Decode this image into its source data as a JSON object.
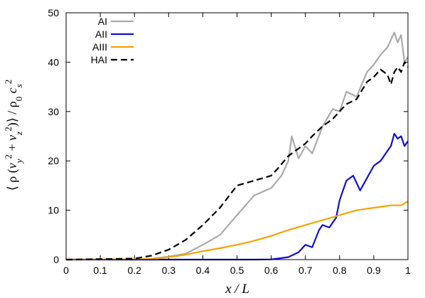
{
  "chart_data": {
    "type": "line",
    "xlabel": "x / L",
    "ylabel": {
      "open": "⟨ ρ (",
      "v1": "v",
      "s1": "y",
      "p1": "2",
      "plus": " + ",
      "v2": "v",
      "s2": "z",
      "p2": "2",
      "close": ")⟩ / ρ",
      "s0": "0",
      "c": " c",
      "s3": "s",
      "p3": "2"
    },
    "xlim": [
      0,
      1
    ],
    "ylim": [
      0,
      50
    ],
    "xticks": [
      0,
      0.1,
      0.2,
      0.3,
      0.4,
      0.5,
      0.6,
      0.7,
      0.8,
      0.9,
      1
    ],
    "xtick_labels": [
      "0",
      "0.1",
      "0.2",
      "0.3",
      "0.4",
      "0.5",
      "0.6",
      "0.7",
      "0.8",
      "0.9",
      "1"
    ],
    "yticks": [
      0,
      10,
      20,
      30,
      40,
      50
    ],
    "ytick_labels": [
      "0",
      "10",
      "20",
      "30",
      "40",
      "50"
    ],
    "grid": false,
    "legend": "top-left",
    "series": [
      {
        "name": "AI",
        "color": "#aaaaaa",
        "dash": "solid",
        "x": [
          0,
          0.2,
          0.25,
          0.3,
          0.35,
          0.4,
          0.45,
          0.5,
          0.55,
          0.6,
          0.63,
          0.65,
          0.66,
          0.68,
          0.7,
          0.72,
          0.75,
          0.78,
          0.8,
          0.82,
          0.85,
          0.88,
          0.9,
          0.92,
          0.94,
          0.96,
          0.97,
          0.98,
          0.99,
          1.0
        ],
        "y": [
          0,
          0,
          0.2,
          0.6,
          1.2,
          3,
          5,
          9,
          13,
          14.5,
          17,
          20,
          25,
          20.5,
          23,
          21.5,
          27,
          30.5,
          30,
          34,
          33,
          38,
          39.5,
          41.5,
          43,
          46,
          44,
          45.5,
          40,
          41
        ]
      },
      {
        "name": "AII",
        "color": "#1010cc",
        "dash": "solid",
        "x": [
          0,
          0.55,
          0.6,
          0.63,
          0.65,
          0.68,
          0.7,
          0.72,
          0.74,
          0.75,
          0.77,
          0.79,
          0.8,
          0.82,
          0.84,
          0.86,
          0.88,
          0.9,
          0.92,
          0.94,
          0.95,
          0.96,
          0.97,
          0.98,
          0.99,
          1.0
        ],
        "y": [
          0,
          0,
          0.05,
          0.3,
          0.5,
          1.5,
          3,
          2.5,
          6,
          7,
          6.5,
          8.5,
          12,
          16,
          17,
          14,
          16.5,
          19,
          20,
          22,
          23,
          25.5,
          24.5,
          25,
          23,
          24
        ]
      },
      {
        "name": "AIII",
        "color": "#f5a300",
        "dash": "solid",
        "x": [
          0,
          0.25,
          0.3,
          0.35,
          0.4,
          0.45,
          0.5,
          0.55,
          0.6,
          0.65,
          0.7,
          0.75,
          0.8,
          0.85,
          0.9,
          0.95,
          0.98,
          1.0
        ],
        "y": [
          0,
          0.1,
          0.5,
          1,
          1.7,
          2.3,
          3,
          3.8,
          4.8,
          6,
          7,
          8,
          9,
          10,
          10.5,
          11,
          11,
          11.8
        ]
      },
      {
        "name": "HAI",
        "color": "#000000",
        "dash": "dashed",
        "x": [
          0,
          0.2,
          0.25,
          0.3,
          0.35,
          0.4,
          0.45,
          0.5,
          0.55,
          0.6,
          0.62,
          0.65,
          0.68,
          0.7,
          0.72,
          0.75,
          0.78,
          0.8,
          0.82,
          0.85,
          0.88,
          0.9,
          0.92,
          0.94,
          0.95,
          0.96,
          0.97,
          0.98,
          0.99,
          1.0
        ],
        "y": [
          0,
          0.2,
          0.8,
          2,
          4,
          7,
          10.5,
          15,
          16,
          17,
          18.5,
          21,
          22.5,
          23.5,
          25,
          27,
          28.5,
          30,
          31.5,
          32.5,
          36,
          37,
          38.5,
          37.5,
          35.5,
          38,
          39,
          38,
          40,
          39
        ]
      }
    ]
  }
}
